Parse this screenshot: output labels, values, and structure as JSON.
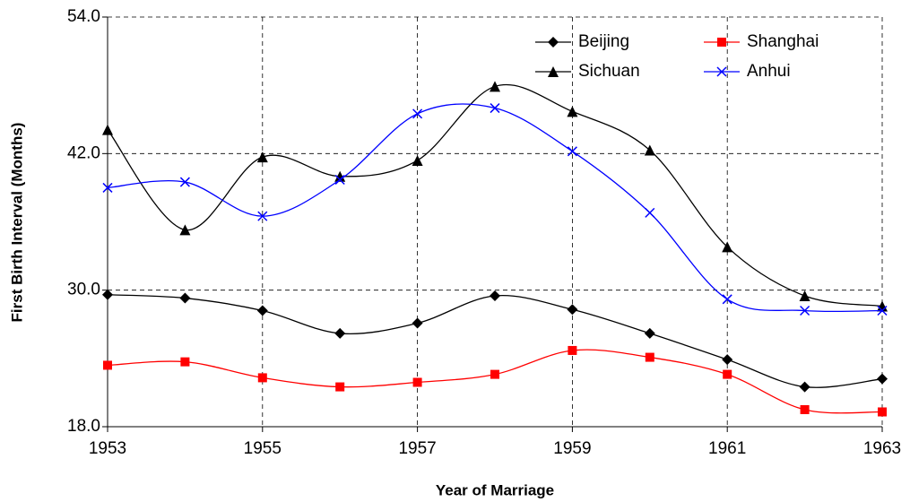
{
  "chart_data": {
    "type": "line",
    "x_label": "Year of Marriage",
    "y_label": "First Birth Interval (Months)",
    "x": [
      1953,
      1954,
      1955,
      1956,
      1957,
      1958,
      1959,
      1960,
      1961,
      1962,
      1963
    ],
    "series": [
      {
        "name": "Beijing",
        "color": "#000000",
        "marker": "diamond",
        "values": [
          29.6,
          29.3,
          28.2,
          26.2,
          27.1,
          29.5,
          28.3,
          26.2,
          23.9,
          21.5,
          22.2
        ]
      },
      {
        "name": "Shanghai",
        "color": "#ff0000",
        "marker": "square",
        "values": [
          23.4,
          23.7,
          22.3,
          21.5,
          21.9,
          22.6,
          24.7,
          24.1,
          22.6,
          19.5,
          19.3
        ]
      },
      {
        "name": "Sichuan",
        "color": "#000000",
        "marker": "triangle",
        "values": [
          44.1,
          35.3,
          41.7,
          40.0,
          41.4,
          47.9,
          45.7,
          42.3,
          33.8,
          29.5,
          28.6
        ]
      },
      {
        "name": "Anhui",
        "color": "#0000ff",
        "marker": "x",
        "values": [
          39.0,
          39.5,
          36.5,
          39.7,
          45.5,
          46.0,
          42.2,
          36.8,
          29.2,
          28.2,
          28.2
        ]
      }
    ],
    "xlim": [
      1953,
      1963
    ],
    "xticks": [
      1953,
      1955,
      1957,
      1959,
      1961,
      1963
    ],
    "ylim": [
      18,
      54
    ],
    "yticks": [
      {
        "value": 18,
        "label": "18.0"
      },
      {
        "value": 30,
        "label": "30.0"
      },
      {
        "value": 42,
        "label": "42.0"
      },
      {
        "value": 54,
        "label": "54.0"
      }
    ],
    "grid": true,
    "smooth": true,
    "legend": "upper right"
  }
}
